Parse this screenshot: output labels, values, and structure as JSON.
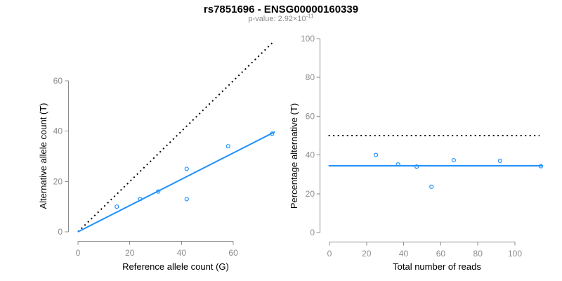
{
  "page": {
    "title": "rs7851696 - ENSG00000160339",
    "subtitle": {
      "prefix": "p-value: ",
      "mantissa": "2.92×10",
      "exponent": "-11"
    }
  },
  "colors": {
    "accent_blue": "#1E90FF",
    "axis_gray": "#8c8c8c",
    "title_black": "#000000",
    "subtitle_gray": "#8c8c8c",
    "dashed_black": "#000000"
  },
  "chart_data": [
    {
      "type": "scatter",
      "name": "allele-counts-scatter",
      "xlabel": "Reference allele count (G)",
      "ylabel": "Alternative allele count (T)",
      "xticks": [
        0,
        20,
        40,
        60
      ],
      "yticks": [
        0,
        20,
        40,
        60
      ],
      "xlim": [
        0,
        76
      ],
      "ylim": [
        0,
        76
      ],
      "grid": false,
      "point_color": "#1E90FF",
      "points": [
        [
          15,
          10
        ],
        [
          24,
          13
        ],
        [
          31,
          16
        ],
        [
          42,
          13
        ],
        [
          42,
          25
        ],
        [
          58,
          34
        ],
        [
          75,
          39
        ]
      ],
      "lines": [
        {
          "name": "identity-line",
          "style": "dotted",
          "color": "#000000",
          "x1": 0,
          "y1": 0,
          "x2": 75.8,
          "y2": 75.8
        },
        {
          "name": "fit-line",
          "style": "solid",
          "color": "#1E90FF",
          "x1": 0,
          "y1": 0,
          "x2": 76,
          "y2": 39.7
        }
      ]
    },
    {
      "type": "scatter",
      "name": "percentage-vs-coverage-scatter",
      "xlabel": "Total number of reads",
      "ylabel": "Percentage alternative (T)",
      "xticks": [
        0,
        20,
        40,
        60,
        80,
        100
      ],
      "yticks": [
        0,
        20,
        40,
        60,
        80,
        100
      ],
      "xlim": [
        0,
        115
      ],
      "ylim": [
        0,
        100
      ],
      "grid": false,
      "point_color": "#1E90FF",
      "points": [
        [
          25,
          40
        ],
        [
          37,
          35.1
        ],
        [
          47,
          34
        ],
        [
          55,
          23.6
        ],
        [
          67,
          37.3
        ],
        [
          92,
          37
        ],
        [
          114,
          34.2
        ]
      ],
      "lines": [
        {
          "name": "fifty-percent-line",
          "style": "dotted",
          "color": "#000000",
          "x1": -0.5,
          "y1": 50,
          "x2": 113.3,
          "y2": 50
        },
        {
          "name": "mean-percentage-line",
          "style": "solid",
          "color": "#1E90FF",
          "x1": -0.5,
          "y1": 34.4,
          "x2": 114.8,
          "y2": 34.4
        }
      ]
    }
  ]
}
